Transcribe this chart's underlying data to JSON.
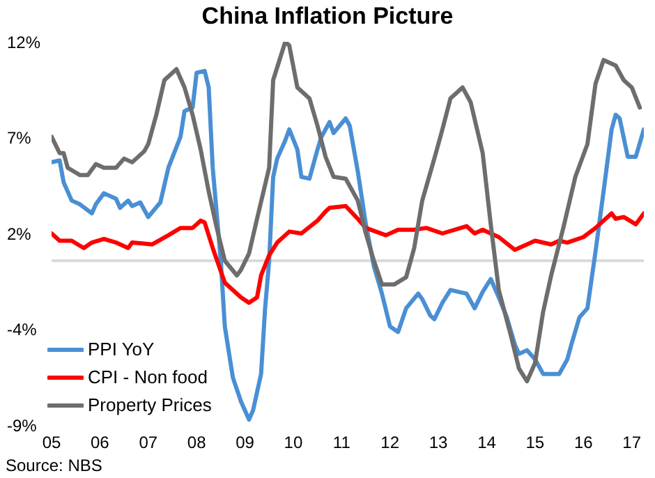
{
  "chart_data": {
    "type": "line",
    "title": "China Inflation Picture",
    "annotations": [
      "Source: NBS"
    ],
    "xlim": [
      "2005-01",
      "2017-04"
    ],
    "xticks": [
      {
        "value": "2005-01",
        "label": "05"
      },
      {
        "value": "2006-01",
        "label": "06"
      },
      {
        "value": "2007-01",
        "label": "07"
      },
      {
        "value": "2008-01",
        "label": "08"
      },
      {
        "value": "2009-01",
        "label": "09"
      },
      {
        "value": "2010-01",
        "label": "10"
      },
      {
        "value": "2011-01",
        "label": "11"
      },
      {
        "value": "2012-01",
        "label": "12"
      },
      {
        "value": "2013-01",
        "label": "13"
      },
      {
        "value": "2014-01",
        "label": "14"
      },
      {
        "value": "2015-01",
        "label": "15"
      },
      {
        "value": "2016-01",
        "label": "16"
      },
      {
        "value": "2017-01",
        "label": "17"
      }
    ],
    "ylim": [
      -9,
      12
    ],
    "yticks": [
      {
        "value": -9,
        "label": "-9%"
      },
      {
        "value": -3.75,
        "label": "-4%"
      },
      {
        "value": 1.5,
        "label": "2%"
      },
      {
        "value": 6.75,
        "label": "7%"
      },
      {
        "value": 12,
        "label": "12%"
      }
    ],
    "ref_lines": [
      {
        "axis": "y",
        "value": 0,
        "color": "#d9d9d9"
      }
    ],
    "grid": false,
    "legend": "bottom left",
    "marker": "none",
    "line_style": "solid",
    "series": [
      {
        "name": "PPI YoY",
        "color": "#4a8fd4",
        "x": [
          "2005-01",
          "2005-03",
          "2005-04",
          "2005-06",
          "2005-08",
          "2005-11",
          "2005-12",
          "2006-02",
          "2006-05",
          "2006-06",
          "2006-08",
          "2006-09",
          "2006-11",
          "2007-01",
          "2007-04",
          "2007-06",
          "2007-09",
          "2007-10",
          "2007-12",
          "2008-01",
          "2008-03",
          "2008-04",
          "2008-05",
          "2008-07",
          "2008-08",
          "2008-10",
          "2008-12",
          "2009-02",
          "2009-03",
          "2009-05",
          "2009-06",
          "2009-07",
          "2009-08",
          "2009-09",
          "2009-11",
          "2009-12",
          "2010-02",
          "2010-03",
          "2010-05",
          "2010-06",
          "2010-07",
          "2010-08",
          "2010-10",
          "2010-11",
          "2011-02",
          "2011-03",
          "2011-05",
          "2011-07",
          "2011-09",
          "2011-11",
          "2012-01",
          "2012-03",
          "2012-05",
          "2012-08",
          "2012-09",
          "2012-11",
          "2012-12",
          "2013-02",
          "2013-04",
          "2013-06",
          "2013-08",
          "2013-10",
          "2013-12",
          "2014-02",
          "2014-04",
          "2014-06",
          "2014-08",
          "2014-09",
          "2014-11",
          "2015-01",
          "2015-03",
          "2015-07",
          "2015-09",
          "2015-10",
          "2015-12",
          "2016-02",
          "2016-04",
          "2016-06",
          "2016-08",
          "2016-09",
          "2016-10",
          "2016-12",
          "2017-02",
          "2017-04"
        ],
        "values": [
          5.4,
          5.5,
          4.3,
          3.3,
          3.1,
          2.6,
          3.1,
          3.7,
          3.4,
          2.9,
          3.3,
          3.0,
          3.2,
          2.4,
          3.2,
          5.1,
          6.8,
          8.2,
          8.4,
          10.3,
          10.4,
          9.5,
          5.1,
          0,
          -3.6,
          -6.4,
          -7.7,
          -8.7,
          -8.2,
          -6.2,
          -2.6,
          0,
          4.6,
          5.6,
          6.6,
          7.2,
          6.1,
          4.6,
          4.5,
          5.3,
          6.1,
          6.8,
          7.6,
          7.0,
          7.8,
          7.4,
          4.9,
          2.0,
          -0.3,
          -1.8,
          -3.6,
          -3.9,
          -2.6,
          -1.8,
          -2.1,
          -3.0,
          -3.2,
          -2.3,
          -1.6,
          -1.7,
          -1.8,
          -2.6,
          -1.7,
          -1.0,
          -2.0,
          -3.1,
          -4.6,
          -5.1,
          -4.9,
          -5.4,
          -6.2,
          -6.2,
          -5.4,
          -4.6,
          -3.1,
          -2.6,
          0.5,
          3.8,
          7.2,
          8.0,
          7.8,
          5.7,
          5.7,
          7.2
        ]
      },
      {
        "name": "CPI - Non food",
        "color": "#ff0000",
        "x": [
          "2005-01",
          "2005-03",
          "2005-06",
          "2005-09",
          "2005-11",
          "2006-02",
          "2006-05",
          "2006-08",
          "2006-09",
          "2007-02",
          "2007-06",
          "2007-09",
          "2007-12",
          "2008-02",
          "2008-03",
          "2008-05",
          "2008-08",
          "2008-10",
          "2008-12",
          "2009-02",
          "2009-04",
          "2009-05",
          "2009-07",
          "2009-09",
          "2009-12",
          "2010-03",
          "2010-07",
          "2010-09",
          "2010-10",
          "2011-02",
          "2011-05",
          "2011-07",
          "2011-12",
          "2012-03",
          "2012-07",
          "2012-10",
          "2013-02",
          "2013-08",
          "2013-10",
          "2013-12",
          "2014-04",
          "2014-08",
          "2014-11",
          "2015-01",
          "2015-05",
          "2015-07",
          "2015-09",
          "2016-01",
          "2016-04",
          "2016-08",
          "2016-09",
          "2016-11",
          "2017-02",
          "2017-04"
        ],
        "values": [
          1.5,
          1.1,
          1.1,
          0.7,
          1.0,
          1.2,
          1.0,
          0.7,
          1.0,
          0.9,
          1.4,
          1.8,
          1.8,
          2.2,
          2.1,
          0.7,
          -1.2,
          -1.6,
          -2.0,
          -2.3,
          -2.0,
          -0.8,
          0.3,
          1.0,
          1.6,
          1.5,
          2.2,
          2.7,
          2.9,
          3.0,
          2.3,
          1.8,
          1.4,
          1.7,
          1.7,
          1.8,
          1.5,
          1.9,
          1.5,
          1.7,
          1.3,
          0.6,
          0.9,
          1.1,
          0.9,
          1.1,
          1.0,
          1.3,
          1.8,
          2.6,
          2.3,
          2.4,
          2.0,
          2.6
        ]
      },
      {
        "name": "Property Prices",
        "color": "#6d6d6d",
        "x": [
          "2005-01",
          "2005-03",
          "2005-04",
          "2005-05",
          "2005-08",
          "2005-10",
          "2005-12",
          "2006-02",
          "2006-05",
          "2006-07",
          "2006-09",
          "2006-12",
          "2007-01",
          "2007-03",
          "2007-05",
          "2007-08",
          "2007-10",
          "2007-12",
          "2008-02",
          "2008-04",
          "2008-06",
          "2008-08",
          "2008-11",
          "2008-12",
          "2009-02",
          "2009-04",
          "2009-07",
          "2009-08",
          "2009-11",
          "2009-12",
          "2010-02",
          "2010-05",
          "2010-07",
          "2010-09",
          "2010-11",
          "2011-02",
          "2011-05",
          "2011-07",
          "2011-09",
          "2011-11",
          "2012-02",
          "2012-05",
          "2012-07",
          "2012-09",
          "2012-12",
          "2013-02",
          "2013-04",
          "2013-07",
          "2013-09",
          "2013-12",
          "2014-02",
          "2014-04",
          "2014-07",
          "2014-09",
          "2014-11",
          "2015-01",
          "2015-03",
          "2015-05",
          "2015-08",
          "2015-11",
          "2016-02",
          "2016-04",
          "2016-06",
          "2016-09",
          "2016-11",
          "2017-01",
          "2017-03"
        ],
        "values": [
          6.8,
          5.9,
          5.9,
          5.1,
          4.7,
          4.7,
          5.3,
          5.1,
          5.1,
          5.6,
          5.4,
          6.0,
          6.4,
          8.0,
          9.9,
          10.5,
          9.5,
          8.0,
          6.1,
          3.8,
          1.8,
          0,
          -0.8,
          -0.5,
          0.4,
          2.3,
          5.1,
          9.9,
          12.0,
          11.8,
          9.5,
          8.9,
          7.4,
          5.7,
          4.6,
          4.5,
          3.3,
          1.5,
          0,
          -1.3,
          -1.3,
          -0.9,
          0.7,
          3.3,
          5.6,
          7.2,
          8.9,
          9.5,
          8.7,
          5.9,
          2.0,
          -1.6,
          -4.1,
          -5.9,
          -6.6,
          -5.6,
          -2.8,
          -0.8,
          1.8,
          4.6,
          6.4,
          9.7,
          11.0,
          10.7,
          9.9,
          9.5,
          8.4
        ]
      }
    ]
  }
}
